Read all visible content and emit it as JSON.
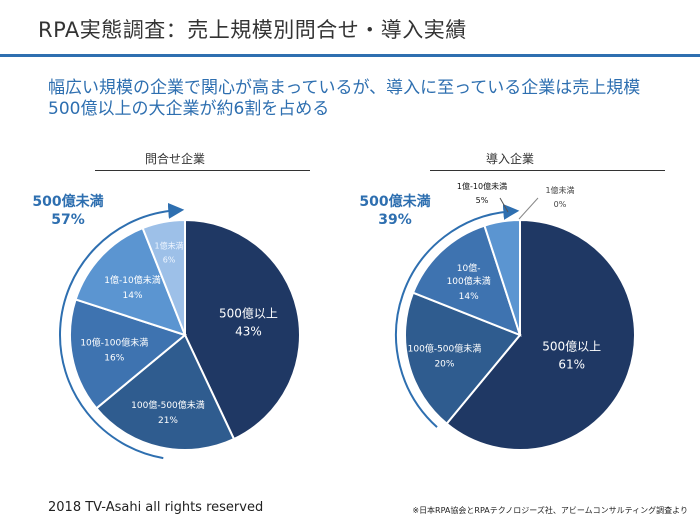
{
  "slide": {
    "title": "RPA実態調査：売上規模別問合せ・導入実績",
    "subtitle": "幅広い規模の企業で関心が高まっているが、導入に至っている企業は売上規模500億以上の大企業が約6割を占める",
    "footer_left": "2018 TV-Asahi all rights reserved",
    "footer_right": "※日本RPA協会とRPAテクノロジーズ社、アビームコンサルティング調査より"
  },
  "colors": {
    "accent": "#2e6fb0",
    "s1": "#1f3864",
    "s2": "#2f5c8f",
    "s3": "#3e73b0",
    "s4": "#5b95d1",
    "s5": "#9dc0e8"
  },
  "chart_data": [
    {
      "type": "pie",
      "title": "問合せ企業",
      "highlight_label": "500億未満",
      "highlight_value": "57%",
      "slices": [
        {
          "label": "500億以上",
          "value": 43,
          "value_label": "43%"
        },
        {
          "label": "100億-500億未満",
          "value": 21,
          "value_label": "21%"
        },
        {
          "label": "10億-100億未満",
          "value": 16,
          "value_label": "16%"
        },
        {
          "label": "1億-10億未満",
          "value": 14,
          "value_label": "14%"
        },
        {
          "label": "1億未満",
          "value": 6,
          "value_label": "6%"
        }
      ]
    },
    {
      "type": "pie",
      "title": "導入企業",
      "highlight_label": "500億未満",
      "highlight_value": "39%",
      "slices": [
        {
          "label": "500億以上",
          "value": 61,
          "value_label": "61%"
        },
        {
          "label": "100億-500億未満",
          "value": 20,
          "value_label": "20%"
        },
        {
          "label": "10億-100億未満",
          "value": 14,
          "value_label": "14%"
        },
        {
          "label": "1億-10億未満",
          "value": 5,
          "value_label": "5%"
        },
        {
          "label": "1億未満",
          "value": 0,
          "value_label": "0%"
        }
      ]
    }
  ]
}
